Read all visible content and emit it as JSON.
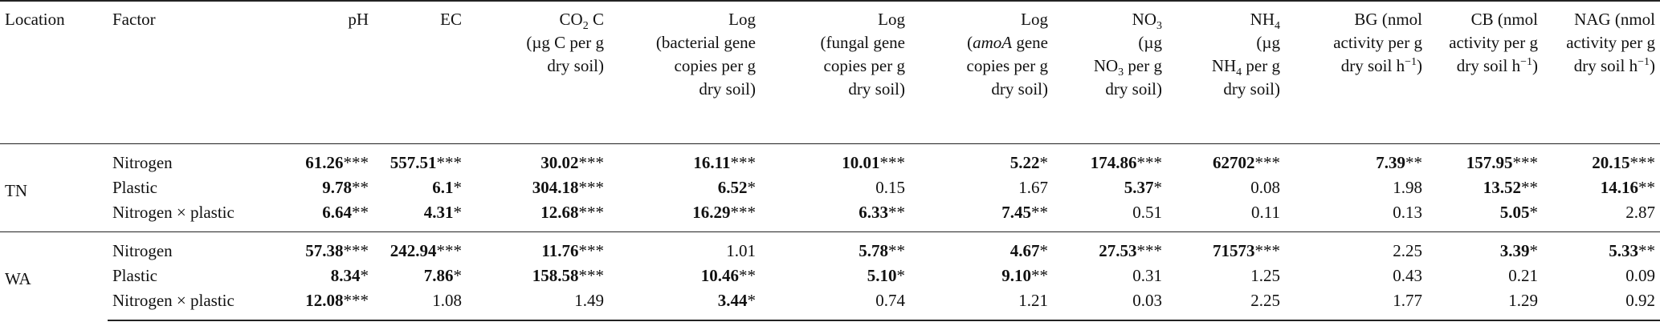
{
  "header": {
    "location": "Location",
    "factor": "Factor",
    "ph": "pH",
    "ec": "EC",
    "co2": {
      "a": "CO",
      "sub": "2",
      "b": " C",
      "l2": "(µg C per g",
      "l3": "dry soil)"
    },
    "bact": {
      "l1": "Log",
      "l2": "(bacterial gene",
      "l3": "copies per g",
      "l4": "dry soil)"
    },
    "fung": {
      "l1": "Log",
      "l2": "(fungal gene",
      "l3": "copies per g",
      "l4": "dry soil)"
    },
    "amoa": {
      "l1": "Log",
      "l2a": "(",
      "l2it": "amoA",
      "l2b": " gene",
      "l3": "copies per g",
      "l4": "dry soil)"
    },
    "no3": {
      "a": "NO",
      "sub": "3",
      "l2": "(µg",
      "l3a": "NO",
      "l3sub": "3",
      "l3b": " per g",
      "l4": "dry soil)"
    },
    "nh4": {
      "a": "NH",
      "sub": "4",
      "l2": "(µg",
      "l3a": "NH",
      "l3sub": "4",
      "l3b": " per g",
      "l4": "dry soil)"
    },
    "bg": {
      "l1": "BG (nmol",
      "l2": "activity per g",
      "l3a": "dry soil h",
      "l3sup": "−1",
      "l3b": ")"
    },
    "cb": {
      "l1": "CB (nmol",
      "l2": "activity per g",
      "l3a": "dry soil h",
      "l3sup": "−1",
      "l3b": ")"
    },
    "nag": {
      "l1": "NAG (nmol",
      "l2": "activity per g",
      "l3a": "dry soil h",
      "l3sup": "−1",
      "l3b": ")"
    }
  },
  "groups": [
    {
      "location": "TN",
      "rows": [
        {
          "factor": "Nitrogen",
          "cells": [
            {
              "v": "61.26",
              "s": "***",
              "b": true
            },
            {
              "v": "557.51",
              "s": "***",
              "b": true
            },
            {
              "v": "30.02",
              "s": "***",
              "b": true
            },
            {
              "v": "16.11",
              "s": "***",
              "b": true
            },
            {
              "v": "10.01",
              "s": "***",
              "b": true
            },
            {
              "v": "5.22",
              "s": "*",
              "b": true
            },
            {
              "v": "174.86",
              "s": "***",
              "b": true
            },
            {
              "v": "62702",
              "s": "***",
              "b": true
            },
            {
              "v": "7.39",
              "s": "**",
              "b": true
            },
            {
              "v": "157.95",
              "s": "***",
              "b": true
            },
            {
              "v": "20.15",
              "s": "***",
              "b": true
            }
          ]
        },
        {
          "factor": "Plastic",
          "cells": [
            {
              "v": "9.78",
              "s": "**",
              "b": true
            },
            {
              "v": "6.1",
              "s": "*",
              "b": true
            },
            {
              "v": "304.18",
              "s": "***",
              "b": true
            },
            {
              "v": "6.52",
              "s": "*",
              "b": true
            },
            {
              "v": "0.15",
              "s": "",
              "b": false
            },
            {
              "v": "1.67",
              "s": "",
              "b": false
            },
            {
              "v": "5.37",
              "s": "*",
              "b": true
            },
            {
              "v": "0.08",
              "s": "",
              "b": false
            },
            {
              "v": "1.98",
              "s": "",
              "b": false
            },
            {
              "v": "13.52",
              "s": "**",
              "b": true
            },
            {
              "v": "14.16",
              "s": "**",
              "b": true
            }
          ]
        },
        {
          "factor": "Nitrogen × plastic",
          "cells": [
            {
              "v": "6.64",
              "s": "**",
              "b": true
            },
            {
              "v": "4.31",
              "s": "*",
              "b": true
            },
            {
              "v": "12.68",
              "s": "***",
              "b": true
            },
            {
              "v": "16.29",
              "s": "***",
              "b": true
            },
            {
              "v": "6.33",
              "s": "**",
              "b": true
            },
            {
              "v": "7.45",
              "s": "**",
              "b": true
            },
            {
              "v": "0.51",
              "s": "",
              "b": false
            },
            {
              "v": "0.11",
              "s": "",
              "b": false
            },
            {
              "v": "0.13",
              "s": "",
              "b": false
            },
            {
              "v": "5.05",
              "s": "*",
              "b": true
            },
            {
              "v": "2.87",
              "s": "",
              "b": false
            }
          ]
        }
      ]
    },
    {
      "location": "WA",
      "rows": [
        {
          "factor": "Nitrogen",
          "cells": [
            {
              "v": "57.38",
              "s": "***",
              "b": true
            },
            {
              "v": "242.94",
              "s": "***",
              "b": true
            },
            {
              "v": "11.76",
              "s": "***",
              "b": true
            },
            {
              "v": "1.01",
              "s": "",
              "b": false
            },
            {
              "v": "5.78",
              "s": "**",
              "b": true
            },
            {
              "v": "4.67",
              "s": "*",
              "b": true
            },
            {
              "v": "27.53",
              "s": "***",
              "b": true
            },
            {
              "v": "71573",
              "s": "***",
              "b": true
            },
            {
              "v": "2.25",
              "s": "",
              "b": false
            },
            {
              "v": "3.39",
              "s": "*",
              "b": true
            },
            {
              "v": "5.33",
              "s": "**",
              "b": true
            }
          ]
        },
        {
          "factor": "Plastic",
          "cells": [
            {
              "v": "8.34",
              "s": "*",
              "b": true
            },
            {
              "v": "7.86",
              "s": "*",
              "b": true
            },
            {
              "v": "158.58",
              "s": "***",
              "b": true
            },
            {
              "v": "10.46",
              "s": "**",
              "b": true
            },
            {
              "v": "5.10",
              "s": "*",
              "b": true
            },
            {
              "v": "9.10",
              "s": "**",
              "b": true
            },
            {
              "v": "0.31",
              "s": "",
              "b": false
            },
            {
              "v": "1.25",
              "s": "",
              "b": false
            },
            {
              "v": "0.43",
              "s": "",
              "b": false
            },
            {
              "v": "0.21",
              "s": "",
              "b": false
            },
            {
              "v": "0.09",
              "s": "",
              "b": false
            }
          ]
        },
        {
          "factor": "Nitrogen × plastic",
          "cells": [
            {
              "v": "12.08",
              "s": "***",
              "b": true
            },
            {
              "v": "1.08",
              "s": "",
              "b": false
            },
            {
              "v": "1.49",
              "s": "",
              "b": false
            },
            {
              "v": "3.44",
              "s": "*",
              "b": true
            },
            {
              "v": "0.74",
              "s": "",
              "b": false
            },
            {
              "v": "1.21",
              "s": "",
              "b": false
            },
            {
              "v": "0.03",
              "s": "",
              "b": false
            },
            {
              "v": "2.25",
              "s": "",
              "b": false
            },
            {
              "v": "1.77",
              "s": "",
              "b": false
            },
            {
              "v": "1.29",
              "s": "",
              "b": false
            },
            {
              "v": "0.92",
              "s": "",
              "b": false
            }
          ]
        }
      ]
    }
  ]
}
